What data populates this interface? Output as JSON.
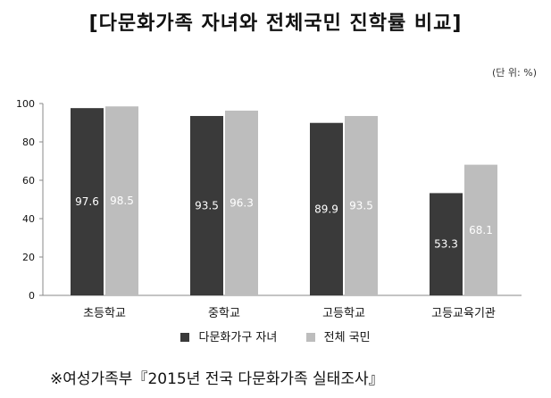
{
  "title": "[다문화가족 자녀와 전체국민 진학률 비교]",
  "unit": "(단 위: %)",
  "source": "※여성가족부『2015년 전국 다문화가족 실태조사』",
  "colors": {
    "series1": "#3a3a3a",
    "series2": "#bdbdbd",
    "axis": "#888888"
  },
  "chart_data": {
    "type": "bar",
    "title": "[다문화가족 자녀와 전체국민 진학률 비교]",
    "categories": [
      "초등학교",
      "중학교",
      "고등학교",
      "고등교육기관"
    ],
    "series": [
      {
        "name": "다문화가구 자녀",
        "values": [
          97.6,
          93.5,
          89.9,
          53.3
        ]
      },
      {
        "name": "전체 국민",
        "values": [
          98.5,
          96.3,
          93.5,
          68.1
        ]
      }
    ],
    "yticks": [
      0,
      20,
      40,
      60,
      80,
      100
    ],
    "ylim": [
      0,
      100
    ],
    "grid": false,
    "legend": "bottom"
  }
}
